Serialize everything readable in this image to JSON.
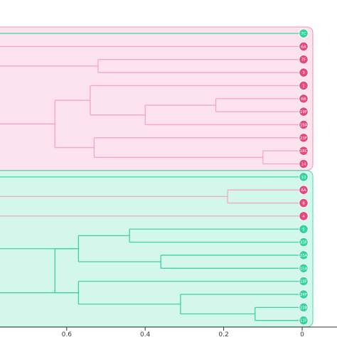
{
  "chart_data": {
    "type": "dendrogram",
    "orientation": "horizontal",
    "x_axis": {
      "direction": "reversed",
      "ticks": [
        {
          "value": 0.6,
          "label": "0.6"
        },
        {
          "value": 0.4,
          "label": "0.4"
        },
        {
          "value": 0.2,
          "label": "0.2"
        },
        {
          "value": 0.0,
          "label": "0"
        }
      ]
    },
    "colors": {
      "cluster_pink_fill": "#fde3ee",
      "cluster_pink_border": "#f48fb1",
      "cluster_pink_branch": "#f4a6c2",
      "cluster_green_fill": "#d4f7ec",
      "cluster_green_border": "#3fdcaa",
      "cluster_green_branch": "#3fd1a3",
      "leaf_pink": "#e64a7b",
      "leaf_green": "#34d49e"
    },
    "clusters": [
      {
        "color": "pink",
        "leaves": [
          "7C",
          "6A",
          "7F",
          "3",
          "1",
          "6B",
          "19F",
          "19A",
          "23F",
          "18C",
          "14"
        ]
      },
      {
        "color": "green",
        "leaves": [
          "13",
          "6A",
          "8",
          "4",
          "5",
          "33F",
          "23A",
          "15A",
          "18F",
          "24F",
          "23B",
          "12F"
        ]
      }
    ],
    "leaves": [
      {
        "label": "7C",
        "color": "green"
      },
      {
        "label": "6A",
        "color": "pink"
      },
      {
        "label": "7F",
        "color": "pink"
      },
      {
        "label": "3",
        "color": "pink"
      },
      {
        "label": "1",
        "color": "pink"
      },
      {
        "label": "6B",
        "color": "pink"
      },
      {
        "label": "19F",
        "color": "pink"
      },
      {
        "label": "19A",
        "color": "pink"
      },
      {
        "label": "23F",
        "color": "pink"
      },
      {
        "label": "18C",
        "color": "pink"
      },
      {
        "label": "14",
        "color": "pink"
      },
      {
        "label": "13",
        "color": "green"
      },
      {
        "label": "6A",
        "color": "pink"
      },
      {
        "label": "8",
        "color": "pink"
      },
      {
        "label": "4",
        "color": "pink"
      },
      {
        "label": "5",
        "color": "green"
      },
      {
        "label": "33F",
        "color": "green"
      },
      {
        "label": "23A",
        "color": "green"
      },
      {
        "label": "15A",
        "color": "green"
      },
      {
        "label": "18F",
        "color": "green"
      },
      {
        "label": "24F",
        "color": "green"
      },
      {
        "label": "23B",
        "color": "green"
      },
      {
        "label": "12F",
        "color": "green"
      }
    ],
    "merges": [
      {
        "children": [
          "3",
          "7F"
        ],
        "height": 0.52,
        "color": "pink"
      },
      {
        "children": [
          "19F",
          "6B"
        ],
        "height": 0.22,
        "color": "pink"
      },
      {
        "children": [
          "19A",
          "m1"
        ],
        "height": 0.4,
        "color": "pink"
      },
      {
        "children": [
          "1",
          "m2"
        ],
        "height": 0.54,
        "color": "pink"
      },
      {
        "children": [
          "18C",
          "14"
        ],
        "height": 0.1,
        "color": "pink"
      },
      {
        "children": [
          "23F",
          "m4"
        ],
        "height": 0.53,
        "color": "pink"
      },
      {
        "children": [
          "m3",
          "m5"
        ],
        "height": 0.63,
        "color": "pink"
      },
      {
        "children": [
          "8",
          "6A"
        ],
        "height": 0.19,
        "color": "pink"
      },
      {
        "children": [
          "33F",
          "5"
        ],
        "height": 0.44,
        "color": "green"
      },
      {
        "children": [
          "15A",
          "23A"
        ],
        "height": 0.36,
        "color": "green"
      },
      {
        "children": [
          "m8",
          "m9"
        ],
        "height": 0.57,
        "color": "green"
      },
      {
        "children": [
          "23B",
          "12F"
        ],
        "height": 0.12,
        "color": "green"
      },
      {
        "children": [
          "24F",
          "m11"
        ],
        "height": 0.31,
        "color": "green"
      },
      {
        "children": [
          "18F",
          "m12"
        ],
        "height": 0.57,
        "color": "green"
      },
      {
        "children": [
          "m10",
          "m13"
        ],
        "height": 0.63,
        "color": "green"
      }
    ],
    "open_branches": [
      {
        "leaf": "7C",
        "color": "green"
      },
      {
        "leaf": "6A",
        "color": "pink"
      },
      {
        "node": "m0",
        "color": "pink"
      },
      {
        "node": "m6",
        "color": "pink"
      },
      {
        "leaf": "13",
        "color": "green"
      },
      {
        "node": "m7",
        "color": "pink"
      },
      {
        "leaf": "4",
        "color": "pink"
      },
      {
        "node": "m10",
        "color": "green"
      },
      {
        "node": "m13",
        "color": "green"
      }
    ]
  }
}
